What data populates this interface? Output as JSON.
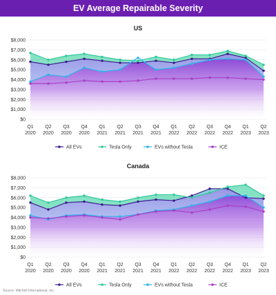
{
  "header": {
    "title": "EV Average Repairable Severity"
  },
  "footer": {
    "source": "Source: Mitchell International, Inc."
  },
  "chart_data": [
    {
      "type": "area",
      "title": "US",
      "y_ticks": [
        "$0",
        "$1,000",
        "$2,000",
        "$3,000",
        "$4,000",
        "$5,000",
        "$6,000",
        "$7,000",
        "$8,000"
      ],
      "ylim": [
        0,
        8000
      ],
      "grid": true,
      "legend_position": "bottom",
      "categories": [
        [
          "Q1",
          "2020"
        ],
        [
          "Q2",
          "2020"
        ],
        [
          "Q3",
          "2020"
        ],
        [
          "Q4",
          "2020"
        ],
        [
          "Q1",
          "2021"
        ],
        [
          "Q2",
          "2021"
        ],
        [
          "Q3",
          "2021"
        ],
        [
          "Q4",
          "2021"
        ],
        [
          "Q1",
          "2022"
        ],
        [
          "Q2",
          "2022"
        ],
        [
          "Q3",
          "2022"
        ],
        [
          "Q4",
          "2022"
        ],
        [
          "Q1",
          "2023"
        ],
        [
          "Q2",
          "2023"
        ]
      ],
      "series": [
        {
          "name": "All EVs",
          "color": "#3d1a8e",
          "values": [
            5800,
            5500,
            5800,
            6100,
            5900,
            5700,
            5700,
            5900,
            5700,
            6100,
            6100,
            6600,
            6200,
            4900
          ]
        },
        {
          "name": "Tesla Only",
          "color": "#2ec99a",
          "values": [
            6700,
            6000,
            6400,
            6600,
            6300,
            6000,
            5900,
            6300,
            6000,
            6500,
            6500,
            6900,
            6400,
            5500
          ]
        },
        {
          "name": "EVs without Tesla",
          "color": "#29b6e8",
          "values": [
            3800,
            4500,
            4300,
            5200,
            4800,
            5000,
            6200,
            5000,
            5200,
            5600,
            6000,
            6100,
            6000,
            4300
          ]
        },
        {
          "name": "ICE",
          "color": "#a83ec8",
          "values": [
            3600,
            3600,
            3700,
            3900,
            3800,
            3800,
            3900,
            4100,
            4100,
            4100,
            4200,
            4200,
            4100,
            4000
          ]
        }
      ]
    },
    {
      "type": "area",
      "title": "Canada",
      "y_ticks": [
        "$0",
        "$1,000",
        "$2,000",
        "$3,000",
        "$4,000",
        "$5,000",
        "$6,000",
        "$7,000",
        "$8,000"
      ],
      "ylim": [
        0,
        8000
      ],
      "grid": true,
      "legend_position": "bottom",
      "categories": [
        [
          "Q1",
          "2020"
        ],
        [
          "Q2",
          "2020"
        ],
        [
          "Q3",
          "2020"
        ],
        [
          "Q4",
          "2020"
        ],
        [
          "Q1",
          "2021"
        ],
        [
          "Q2",
          "2021"
        ],
        [
          "Q3",
          "2021"
        ],
        [
          "Q4",
          "2021"
        ],
        [
          "Q1",
          "2022"
        ],
        [
          "Q2",
          "2022"
        ],
        [
          "Q3",
          "2022"
        ],
        [
          "Q4",
          "2022"
        ],
        [
          "Q1",
          "2023"
        ],
        [
          "Q2",
          "2023"
        ]
      ],
      "series": [
        {
          "name": "All EVs",
          "color": "#3d1a8e",
          "values": [
            5500,
            4800,
            5500,
            5600,
            5300,
            5200,
            5600,
            5800,
            5700,
            6200,
            6900,
            6900,
            6000,
            5900
          ]
        },
        {
          "name": "Tesla Only",
          "color": "#2ec99a",
          "values": [
            6200,
            5500,
            6000,
            6200,
            5800,
            5600,
            6000,
            6300,
            6300,
            6000,
            6500,
            7100,
            7300,
            6200
          ]
        },
        {
          "name": "EVs without Tesla",
          "color": "#29b6e8",
          "values": [
            4200,
            3800,
            4200,
            4300,
            4100,
            4100,
            4300,
            4700,
            4800,
            5200,
            5600,
            6200,
            6200,
            5000
          ]
        },
        {
          "name": "ICE",
          "color": "#a83ec8",
          "values": [
            4000,
            3900,
            4100,
            4200,
            4000,
            3800,
            4300,
            4600,
            4700,
            4500,
            4800,
            5200,
            5100,
            4600
          ]
        }
      ]
    }
  ]
}
